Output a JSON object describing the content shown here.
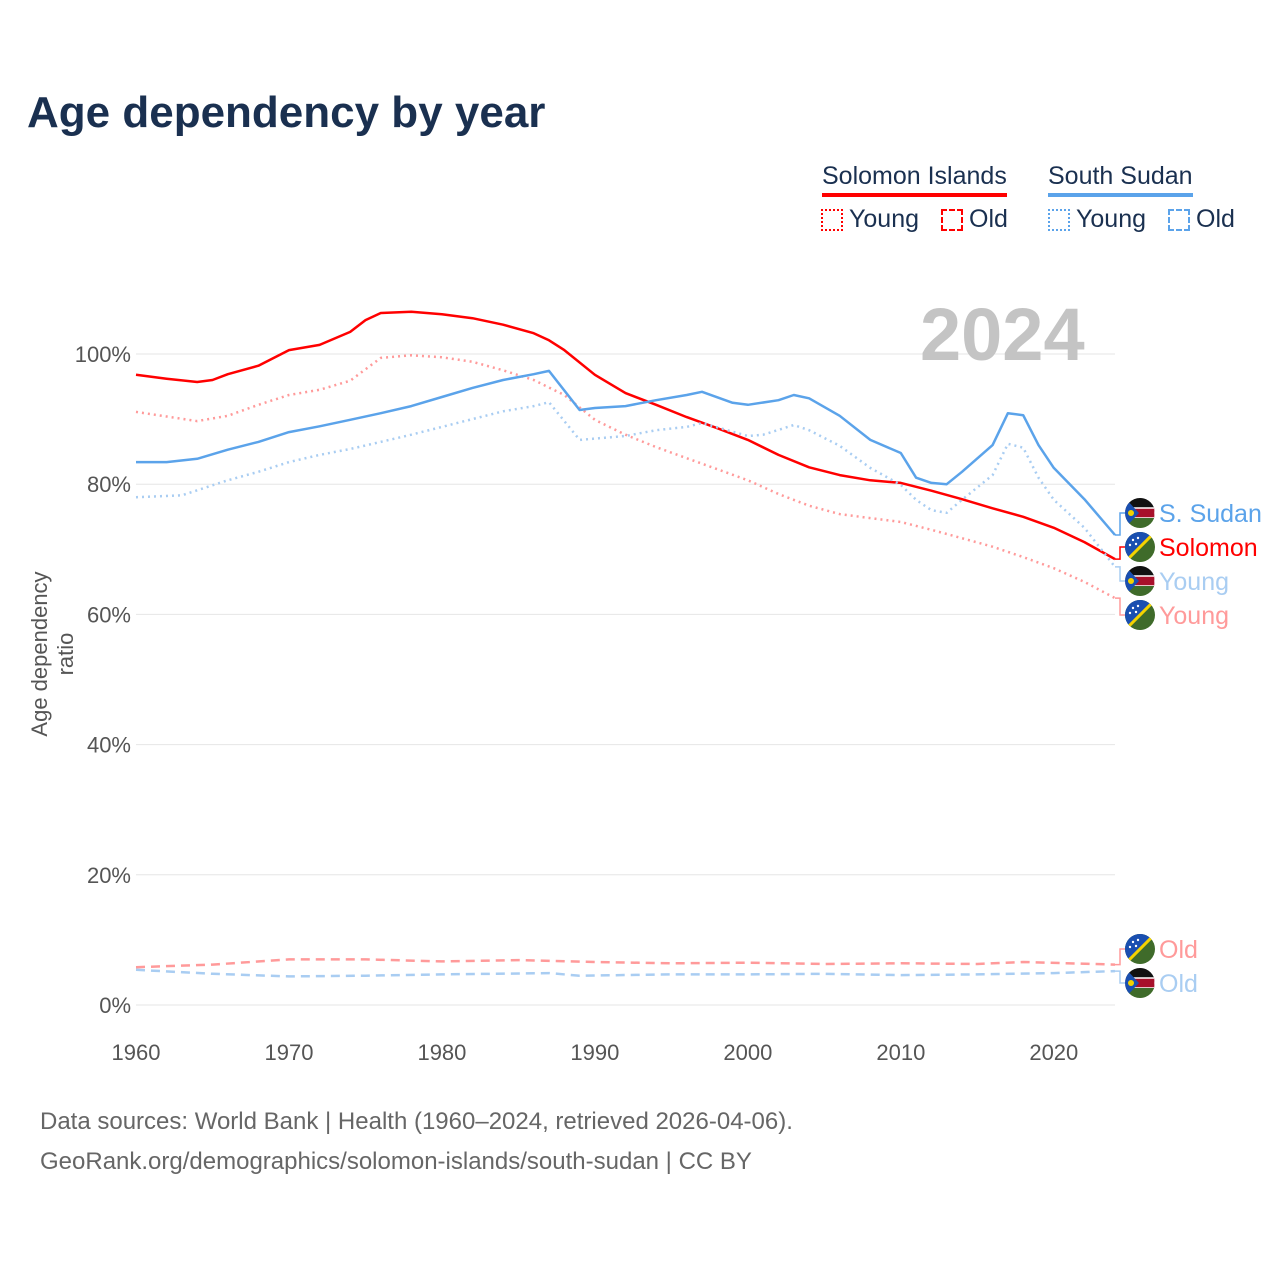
{
  "title": "Age dependency by year",
  "legend": {
    "groups": [
      {
        "name": "Solomon Islands",
        "color": "#ff0000",
        "items": [
          "Young",
          "Old"
        ]
      },
      {
        "name": "South Sudan",
        "color": "#5ba3ea",
        "items": [
          "Young",
          "Old"
        ]
      }
    ]
  },
  "year_label": "2024",
  "source_line1": "Data sources: World Bank | Health (1960–2024, retrieved 2026-04-06).",
  "source_line2": "GeoRank.org/demographics/solomon-islands/south-sudan | CC BY",
  "chart_data": {
    "type": "line",
    "title": "Age dependency by year",
    "xlabel": "",
    "ylabel": "Age dependency ratio",
    "xlim": [
      1960,
      2024
    ],
    "ylim": [
      0,
      100
    ],
    "xticks": [
      "1960",
      "1970",
      "1980",
      "1990",
      "2000",
      "2010",
      "2020"
    ],
    "yticks": [
      "0%",
      "20%",
      "40%",
      "60%",
      "80%",
      "100%"
    ],
    "grid": true,
    "legend_placement": "top-right",
    "series": [
      {
        "name": "Solomon Islands",
        "end_label": "Solomon",
        "color": "#ff0000",
        "style": "solid",
        "flag": "solomon",
        "x": [
          1960,
          1962,
          1964,
          1965,
          1966,
          1968,
          1970,
          1972,
          1974,
          1975,
          1976,
          1978,
          1980,
          1982,
          1984,
          1986,
          1987,
          1988,
          1990,
          1992,
          1994,
          1996,
          1998,
          2000,
          2002,
          2004,
          2006,
          2008,
          2010,
          2012,
          2014,
          2016,
          2018,
          2020,
          2022,
          2024
        ],
        "y": [
          96.8,
          96.2,
          95.7,
          96,
          96.9,
          98.2,
          100.6,
          101.4,
          103.4,
          105.2,
          106.3,
          106.5,
          106.1,
          105.5,
          104.5,
          103.2,
          102.1,
          100.6,
          96.8,
          94,
          92.2,
          90.3,
          88.6,
          86.8,
          84.5,
          82.6,
          81.4,
          80.6,
          80.2,
          79,
          77.7,
          76.3,
          75,
          73.3,
          71.1,
          68.5
        ]
      },
      {
        "name": "Solomon Islands Young",
        "end_label": "Young",
        "color": "#ff9a9a",
        "style": "dotted",
        "flag": "solomon",
        "x": [
          1960,
          1964,
          1966,
          1968,
          1970,
          1972,
          1974,
          1976,
          1978,
          1980,
          1982,
          1984,
          1986,
          1988,
          1990,
          1992,
          1994,
          1996,
          1998,
          2000,
          2002,
          2004,
          2006,
          2008,
          2010,
          2012,
          2014,
          2016,
          2018,
          2020,
          2022,
          2024
        ],
        "y": [
          91.1,
          89.7,
          90.5,
          92.2,
          93.7,
          94.5,
          95.9,
          99.4,
          99.8,
          99.5,
          98.8,
          97.5,
          96,
          93.7,
          89.9,
          87.6,
          85.7,
          84,
          82.3,
          80.6,
          78.5,
          76.7,
          75.4,
          74.8,
          74.2,
          73,
          71.7,
          70.4,
          68.8,
          67.1,
          65,
          62.5
        ]
      },
      {
        "name": "Solomon Islands Old",
        "end_label": "Old",
        "color": "#ff9a9a",
        "style": "dashed",
        "flag": "solomon",
        "x": [
          1960,
          1965,
          1970,
          1975,
          1980,
          1985,
          1990,
          1995,
          2000,
          2005,
          2010,
          2015,
          2018,
          2024
        ],
        "y": [
          5.8,
          6.2,
          7.0,
          7.0,
          6.7,
          6.9,
          6.6,
          6.4,
          6.5,
          6.3,
          6.4,
          6.3,
          6.6,
          6.2
        ]
      },
      {
        "name": "South Sudan",
        "end_label": "S. Sudan",
        "color": "#5ba3ea",
        "style": "solid",
        "flag": "ssudan",
        "x": [
          1960,
          1962,
          1964,
          1966,
          1968,
          1970,
          1972,
          1974,
          1976,
          1978,
          1980,
          1982,
          1984,
          1986,
          1987,
          1989,
          1990,
          1992,
          1994,
          1996,
          1997,
          1999,
          2000,
          2002,
          2003,
          2004,
          2006,
          2008,
          2010,
          2011,
          2012,
          2013,
          2014,
          2016,
          2017,
          2018,
          2019,
          2020,
          2022,
          2024
        ],
        "y": [
          83.4,
          83.4,
          83.9,
          85.3,
          86.5,
          88,
          88.9,
          89.9,
          90.9,
          92,
          93.4,
          94.8,
          96,
          96.9,
          97.4,
          91.4,
          91.7,
          92,
          92.9,
          93.7,
          94.2,
          92.5,
          92.2,
          92.9,
          93.7,
          93.2,
          90.5,
          86.8,
          84.8,
          81,
          80.2,
          80,
          81.9,
          86,
          90.9,
          90.6,
          86,
          82.5,
          77.7,
          72.2
        ]
      },
      {
        "name": "South Sudan Young",
        "end_label": "Young",
        "color": "#a9cdf2",
        "style": "dotted",
        "flag": "ssudan",
        "x": [
          1960,
          1963,
          1966,
          1968,
          1970,
          1972,
          1974,
          1976,
          1978,
          1980,
          1982,
          1984,
          1986,
          1987,
          1989,
          1992,
          1994,
          1996,
          1997,
          2000,
          2001,
          2003,
          2004,
          2006,
          2008,
          2010,
          2011,
          2012,
          2013,
          2014,
          2016,
          2017,
          2018,
          2019,
          2020,
          2022,
          2024
        ],
        "y": [
          78,
          78.3,
          80.6,
          81.9,
          83.4,
          84.5,
          85.4,
          86.5,
          87.6,
          88.8,
          90,
          91.2,
          92,
          92.6,
          86.8,
          87.4,
          88.3,
          88.8,
          89.4,
          87.4,
          87.6,
          89.1,
          88.3,
          85.9,
          82.5,
          79.9,
          77.6,
          76,
          75.6,
          77.6,
          81.4,
          86.2,
          85.6,
          81,
          77.6,
          73.3,
          67.3
        ]
      },
      {
        "name": "South Sudan Old",
        "end_label": "Old",
        "color": "#a9cdf2",
        "style": "dashed",
        "flag": "ssudan",
        "x": [
          1960,
          1965,
          1970,
          1975,
          1980,
          1987,
          1989,
          1995,
          2000,
          2005,
          2010,
          2015,
          2020,
          2024
        ],
        "y": [
          5.4,
          4.8,
          4.4,
          4.5,
          4.7,
          4.9,
          4.5,
          4.7,
          4.7,
          4.8,
          4.6,
          4.7,
          4.9,
          5.2
        ]
      }
    ]
  }
}
